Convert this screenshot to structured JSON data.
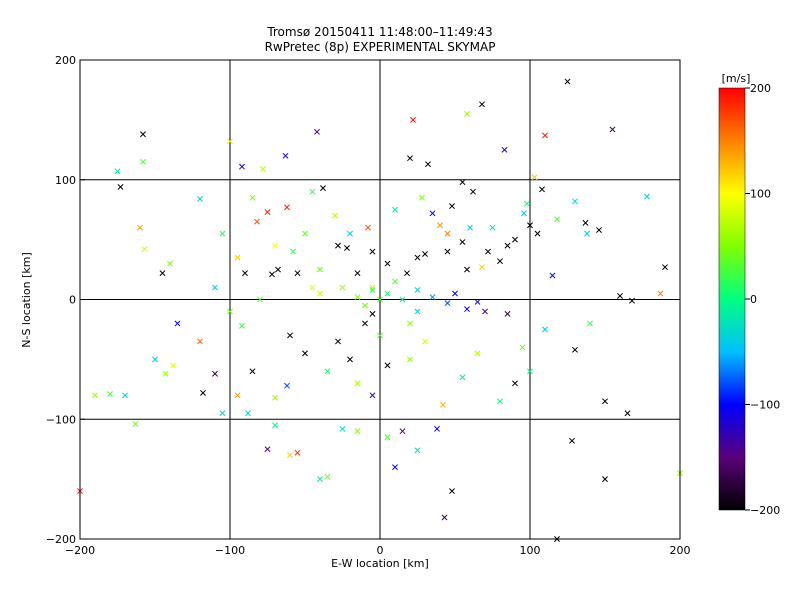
{
  "title_line1": "Tromsø 20150411 11:48:00–11:49:43",
  "title_line2": "RwPretec (8p) EXPERIMENTAL SKYMAP",
  "colors": {
    "background": "#ffffff",
    "axes": "#000000",
    "colormap": [
      "#000000",
      "#5a007a",
      "#0000ff",
      "#00c0ff",
      "#00ff80",
      "#80ff00",
      "#ffff00",
      "#ff8000",
      "#ff0000"
    ]
  },
  "chart_data": {
    "type": "scatter",
    "xlabel": "E-W location [km]",
    "ylabel": "N-S location [km]",
    "xlim": [
      -200,
      200
    ],
    "ylim": [
      -200,
      200
    ],
    "x_ticks": [
      "−200",
      "−100",
      "0",
      "100",
      "200"
    ],
    "y_ticks": [
      "−200",
      "−100",
      "0",
      "100",
      "200"
    ],
    "grid": true,
    "markers": [
      "x",
      "dot"
    ],
    "colorbar": {
      "label": "[m/s]",
      "range": [
        -200,
        200
      ],
      "ticks": [
        "200",
        "100",
        "0",
        "−100",
        "−200"
      ]
    },
    "points": [
      {
        "x": -158,
        "y": 138,
        "v": -200,
        "m": "x"
      },
      {
        "x": -175,
        "y": 107,
        "v": -20,
        "m": "x"
      },
      {
        "x": -173,
        "y": 94,
        "v": -200,
        "m": "x"
      },
      {
        "x": -158,
        "y": 115,
        "v": 30,
        "m": "x"
      },
      {
        "x": -157,
        "y": 42,
        "v": 80,
        "m": "x"
      },
      {
        "x": -145,
        "y": 22,
        "v": -200,
        "m": "x"
      },
      {
        "x": -140,
        "y": 30,
        "v": 50,
        "m": "x"
      },
      {
        "x": -120,
        "y": 84,
        "v": -40,
        "m": "x"
      },
      {
        "x": -143,
        "y": -62,
        "v": 60,
        "m": "x"
      },
      {
        "x": -138,
        "y": -55,
        "v": 90,
        "m": "x"
      },
      {
        "x": -120,
        "y": -35,
        "v": 160,
        "m": "x"
      },
      {
        "x": -190,
        "y": -80,
        "v": 60,
        "m": "x"
      },
      {
        "x": -180,
        "y": -79,
        "v": 30,
        "m": "x"
      },
      {
        "x": -163,
        "y": -104,
        "v": 40,
        "m": "x"
      },
      {
        "x": -100,
        "y": 132,
        "v": 110,
        "m": "x"
      },
      {
        "x": -92,
        "y": 111,
        "v": -110,
        "m": "x"
      },
      {
        "x": -78,
        "y": 109,
        "v": 70,
        "m": "x"
      },
      {
        "x": -63,
        "y": 120,
        "v": -120,
        "m": "x"
      },
      {
        "x": -42,
        "y": 140,
        "v": -150,
        "m": "x"
      },
      {
        "x": -82,
        "y": 65,
        "v": 170,
        "m": "x"
      },
      {
        "x": -75,
        "y": 73,
        "v": 190,
        "m": "x"
      },
      {
        "x": -62,
        "y": 77,
        "v": 190,
        "m": "x"
      },
      {
        "x": -38,
        "y": 93,
        "v": -200,
        "m": "x"
      },
      {
        "x": -28,
        "y": 45,
        "v": -200,
        "m": "x"
      },
      {
        "x": -22,
        "y": 43,
        "v": -200,
        "m": "x"
      },
      {
        "x": -68,
        "y": 25,
        "v": -200,
        "m": "x"
      },
      {
        "x": -72,
        "y": 21,
        "v": -200,
        "m": "x"
      },
      {
        "x": -55,
        "y": 22,
        "v": -200,
        "m": "x"
      },
      {
        "x": -90,
        "y": 22,
        "v": -200,
        "m": "x"
      },
      {
        "x": -95,
        "y": 35,
        "v": 120,
        "m": "x"
      },
      {
        "x": -45,
        "y": 10,
        "v": 90,
        "m": "x"
      },
      {
        "x": -40,
        "y": 5,
        "v": 80,
        "m": "x"
      },
      {
        "x": -92,
        "y": -22,
        "v": 20,
        "m": "x"
      },
      {
        "x": -85,
        "y": -60,
        "v": -200,
        "m": "x"
      },
      {
        "x": -62,
        "y": -72,
        "v": -80,
        "m": "x"
      },
      {
        "x": -70,
        "y": -105,
        "v": 0,
        "m": "x"
      },
      {
        "x": -55,
        "y": -128,
        "v": 180,
        "m": "x"
      },
      {
        "x": -35,
        "y": -148,
        "v": 40,
        "m": "x"
      },
      {
        "x": -25,
        "y": -108,
        "v": -30,
        "m": "x"
      },
      {
        "x": -15,
        "y": -110,
        "v": 50,
        "m": "x"
      },
      {
        "x": 5,
        "y": -115,
        "v": 30,
        "m": "x"
      },
      {
        "x": 15,
        "y": -110,
        "v": -150,
        "m": "x"
      },
      {
        "x": 38,
        "y": -108,
        "v": -100,
        "m": "x"
      },
      {
        "x": 42,
        "y": -88,
        "v": 130,
        "m": "x"
      },
      {
        "x": 43,
        "y": -182,
        "v": -170,
        "m": "x"
      },
      {
        "x": 48,
        "y": -160,
        "v": -200,
        "m": "x"
      },
      {
        "x": 25,
        "y": -126,
        "v": -20,
        "m": "x"
      },
      {
        "x": 5,
        "y": -55,
        "v": -200,
        "m": "x"
      },
      {
        "x": -5,
        "y": -80,
        "v": -120,
        "m": "x"
      },
      {
        "x": 20,
        "y": -50,
        "v": 60,
        "m": "x"
      },
      {
        "x": 80,
        "y": -85,
        "v": 0,
        "m": "x"
      },
      {
        "x": 90,
        "y": -70,
        "v": -200,
        "m": "x"
      },
      {
        "x": 100,
        "y": -60,
        "v": 0,
        "m": "x"
      },
      {
        "x": 130,
        "y": -42,
        "v": -200,
        "m": "x"
      },
      {
        "x": 150,
        "y": -85,
        "v": -200,
        "m": "x"
      },
      {
        "x": 165,
        "y": -95,
        "v": -200,
        "m": "x"
      },
      {
        "x": 128,
        "y": -118,
        "v": -200,
        "m": "x"
      },
      {
        "x": 150,
        "y": -150,
        "v": -200,
        "m": "x"
      },
      {
        "x": 118,
        "y": -200,
        "v": -200,
        "m": "x"
      },
      {
        "x": 125,
        "y": 182,
        "v": -200,
        "m": "x"
      },
      {
        "x": 155,
        "y": 142,
        "v": -170,
        "m": "x"
      },
      {
        "x": 110,
        "y": 137,
        "v": 190,
        "m": "x"
      },
      {
        "x": 68,
        "y": 163,
        "v": -200,
        "m": "x"
      },
      {
        "x": 58,
        "y": 155,
        "v": 60,
        "m": "x"
      },
      {
        "x": 22,
        "y": 150,
        "v": 190,
        "m": "x"
      },
      {
        "x": 83,
        "y": 125,
        "v": -130,
        "m": "x"
      },
      {
        "x": 32,
        "y": 113,
        "v": -200,
        "m": "x"
      },
      {
        "x": 20,
        "y": 118,
        "v": -200,
        "m": "x"
      },
      {
        "x": 55,
        "y": 98,
        "v": -200,
        "m": "x"
      },
      {
        "x": 103,
        "y": 102,
        "v": 120,
        "m": "x"
      },
      {
        "x": 108,
        "y": 92,
        "v": -200,
        "m": "x"
      },
      {
        "x": 130,
        "y": 82,
        "v": -30,
        "m": "x"
      },
      {
        "x": 118,
        "y": 67,
        "v": 30,
        "m": "x"
      },
      {
        "x": 137,
        "y": 64,
        "v": -200,
        "m": "x"
      },
      {
        "x": 146,
        "y": 58,
        "v": -200,
        "m": "x"
      },
      {
        "x": 178,
        "y": 86,
        "v": -40,
        "m": "x"
      },
      {
        "x": 190,
        "y": 27,
        "v": -200,
        "m": "x"
      },
      {
        "x": 187,
        "y": 5,
        "v": 150,
        "m": "x"
      },
      {
        "x": 160,
        "y": 3,
        "v": -200,
        "m": "x"
      },
      {
        "x": 168,
        "y": -1,
        "v": -200,
        "m": "x"
      },
      {
        "x": 138,
        "y": 55,
        "v": -40,
        "m": "x"
      },
      {
        "x": 98,
        "y": 80,
        "v": 0,
        "m": "x"
      },
      {
        "x": 96,
        "y": 72,
        "v": -50,
        "m": "x"
      },
      {
        "x": 85,
        "y": 45,
        "v": -200,
        "m": "x"
      },
      {
        "x": 80,
        "y": 32,
        "v": -200,
        "m": "x"
      },
      {
        "x": 68,
        "y": 27,
        "v": 120,
        "m": "x"
      },
      {
        "x": 58,
        "y": 25,
        "v": -200,
        "m": "x"
      },
      {
        "x": 55,
        "y": 48,
        "v": -200,
        "m": "x"
      },
      {
        "x": 45,
        "y": 40,
        "v": -200,
        "m": "x"
      },
      {
        "x": 40,
        "y": 62,
        "v": 140,
        "m": "x"
      },
      {
        "x": 48,
        "y": 78,
        "v": -200,
        "m": "x"
      },
      {
        "x": 62,
        "y": 90,
        "v": -200,
        "m": "x"
      },
      {
        "x": 75,
        "y": 60,
        "v": -20,
        "m": "x"
      },
      {
        "x": 90,
        "y": 50,
        "v": -200,
        "m": "x"
      },
      {
        "x": 100,
        "y": 62,
        "v": -200,
        "m": "x"
      },
      {
        "x": 105,
        "y": 55,
        "v": -200,
        "m": "x"
      },
      {
        "x": 30,
        "y": 38,
        "v": -200,
        "m": "x"
      },
      {
        "x": 25,
        "y": 35,
        "v": -200,
        "m": "x"
      },
      {
        "x": 18,
        "y": 22,
        "v": -200,
        "m": "x"
      },
      {
        "x": 5,
        "y": 30,
        "v": -200,
        "m": "x"
      },
      {
        "x": -5,
        "y": 40,
        "v": -200,
        "m": "x"
      },
      {
        "x": -15,
        "y": 22,
        "v": -200,
        "m": "x"
      },
      {
        "x": -5,
        "y": -12,
        "v": -200,
        "m": "x"
      },
      {
        "x": -10,
        "y": -20,
        "v": -200,
        "m": "x"
      },
      {
        "x": -28,
        "y": -35,
        "v": -200,
        "m": "x"
      },
      {
        "x": -20,
        "y": -50,
        "v": -200,
        "m": "x"
      },
      {
        "x": -60,
        "y": -30,
        "v": -200,
        "m": "x"
      },
      {
        "x": -50,
        "y": -45,
        "v": -200,
        "m": "x"
      },
      {
        "x": -110,
        "y": -62,
        "v": -170,
        "m": "x"
      },
      {
        "x": -118,
        "y": -78,
        "v": -200,
        "m": "x"
      },
      {
        "x": -135,
        "y": -20,
        "v": -100,
        "m": "x"
      },
      {
        "x": -150,
        "y": -50,
        "v": -40,
        "m": "x"
      },
      {
        "x": -160,
        "y": 60,
        "v": 140,
        "m": "x"
      },
      {
        "x": -170,
        "y": -80,
        "v": -30,
        "m": "x"
      },
      {
        "x": -105,
        "y": -95,
        "v": -30,
        "m": "x"
      },
      {
        "x": -95,
        "y": -80,
        "v": 140,
        "m": "x"
      },
      {
        "x": -88,
        "y": -95,
        "v": -30,
        "m": "x"
      },
      {
        "x": -75,
        "y": -125,
        "v": -150,
        "m": "x"
      },
      {
        "x": -60,
        "y": -130,
        "v": 120,
        "m": "x"
      },
      {
        "x": -40,
        "y": -150,
        "v": -20,
        "m": "x"
      },
      {
        "x": 10,
        "y": -140,
        "v": -100,
        "m": "x"
      },
      {
        "x": -200,
        "y": -160,
        "v": 190,
        "m": "x"
      },
      {
        "x": 200,
        "y": -145,
        "v": 60,
        "m": "x"
      },
      {
        "x": -45,
        "y": 90,
        "v": 20,
        "m": "x"
      },
      {
        "x": -30,
        "y": 70,
        "v": 70,
        "m": "x"
      },
      {
        "x": -50,
        "y": 55,
        "v": 40,
        "m": "x"
      },
      {
        "x": -58,
        "y": 40,
        "v": 20,
        "m": "x"
      },
      {
        "x": -20,
        "y": 55,
        "v": -40,
        "m": "x"
      },
      {
        "x": -8,
        "y": 60,
        "v": 170,
        "m": "x"
      },
      {
        "x": 10,
        "y": 75,
        "v": -20,
        "m": "x"
      },
      {
        "x": 28,
        "y": 85,
        "v": 50,
        "m": "x"
      },
      {
        "x": 35,
        "y": 72,
        "v": -100,
        "m": "x"
      },
      {
        "x": 45,
        "y": 55,
        "v": 150,
        "m": "x"
      },
      {
        "x": 60,
        "y": 60,
        "v": -40,
        "m": "x"
      },
      {
        "x": 72,
        "y": 40,
        "v": -200,
        "m": "x"
      },
      {
        "x": 20,
        "y": -20,
        "v": 50,
        "m": "x"
      },
      {
        "x": 30,
        "y": -35,
        "v": 80,
        "m": "x"
      },
      {
        "x": 0,
        "y": -30,
        "v": 30,
        "m": "x"
      },
      {
        "x": -35,
        "y": -60,
        "v": 10,
        "m": "x"
      },
      {
        "x": -15,
        "y": -70,
        "v": 60,
        "m": "x"
      },
      {
        "x": 55,
        "y": -65,
        "v": -20,
        "m": "x"
      },
      {
        "x": 65,
        "y": -45,
        "v": 70,
        "m": "x"
      },
      {
        "x": -70,
        "y": -82,
        "v": 60,
        "m": "x"
      },
      {
        "x": -100,
        "y": -10,
        "v": 40,
        "m": "x"
      },
      {
        "x": -80,
        "y": 0,
        "v": 30,
        "m": "x"
      },
      {
        "x": -110,
        "y": 10,
        "v": -40,
        "m": "x"
      },
      {
        "x": -105,
        "y": 55,
        "v": 20,
        "m": "x"
      },
      {
        "x": -85,
        "y": 85,
        "v": 50,
        "m": "x"
      },
      {
        "x": -70,
        "y": 45,
        "v": 100,
        "m": "x"
      },
      {
        "x": -40,
        "y": 25,
        "v": 40,
        "m": "x"
      },
      {
        "x": 95,
        "y": -40,
        "v": 40,
        "m": "x"
      },
      {
        "x": 110,
        "y": -25,
        "v": -40,
        "m": "x"
      },
      {
        "x": 140,
        "y": -20,
        "v": 20,
        "m": "x"
      },
      {
        "x": 115,
        "y": 20,
        "v": -100,
        "m": "x"
      },
      {
        "x": 10,
        "y": 15,
        "v": 30,
        "m": "x"
      },
      {
        "x": -25,
        "y": 10,
        "v": 60,
        "m": "x"
      },
      {
        "x": 5,
        "y": 5,
        "v": 10,
        "m": "x"
      },
      {
        "x": 15,
        "y": 0,
        "v": -10,
        "m": "x"
      },
      {
        "x": 35,
        "y": 2,
        "v": -60,
        "m": "x"
      },
      {
        "x": 45,
        "y": -3,
        "v": -80,
        "m": "x"
      },
      {
        "x": 58,
        "y": -8,
        "v": -110,
        "m": "x"
      },
      {
        "x": 70,
        "y": -10,
        "v": -140,
        "m": "x"
      },
      {
        "x": 85,
        "y": -12,
        "v": -170,
        "m": "x"
      },
      {
        "x": -15,
        "y": 2,
        "v": 50,
        "m": "x"
      },
      {
        "x": -10,
        "y": -5,
        "v": 40,
        "m": "x"
      },
      {
        "x": 25,
        "y": 8,
        "v": -30,
        "m": "x"
      },
      {
        "x": 50,
        "y": 5,
        "v": -100,
        "m": "x"
      },
      {
        "x": 65,
        "y": -2,
        "v": -120,
        "m": "x"
      },
      {
        "x": 25,
        "y": -10,
        "v": -40,
        "m": "x"
      },
      {
        "x": 0,
        "y": 0,
        "v": 30,
        "m": "x"
      },
      {
        "x": -5,
        "y": 10,
        "v": 70,
        "m": "x"
      },
      {
        "x": -5,
        "y": 8,
        "v": 20,
        "m": "x"
      }
    ]
  }
}
